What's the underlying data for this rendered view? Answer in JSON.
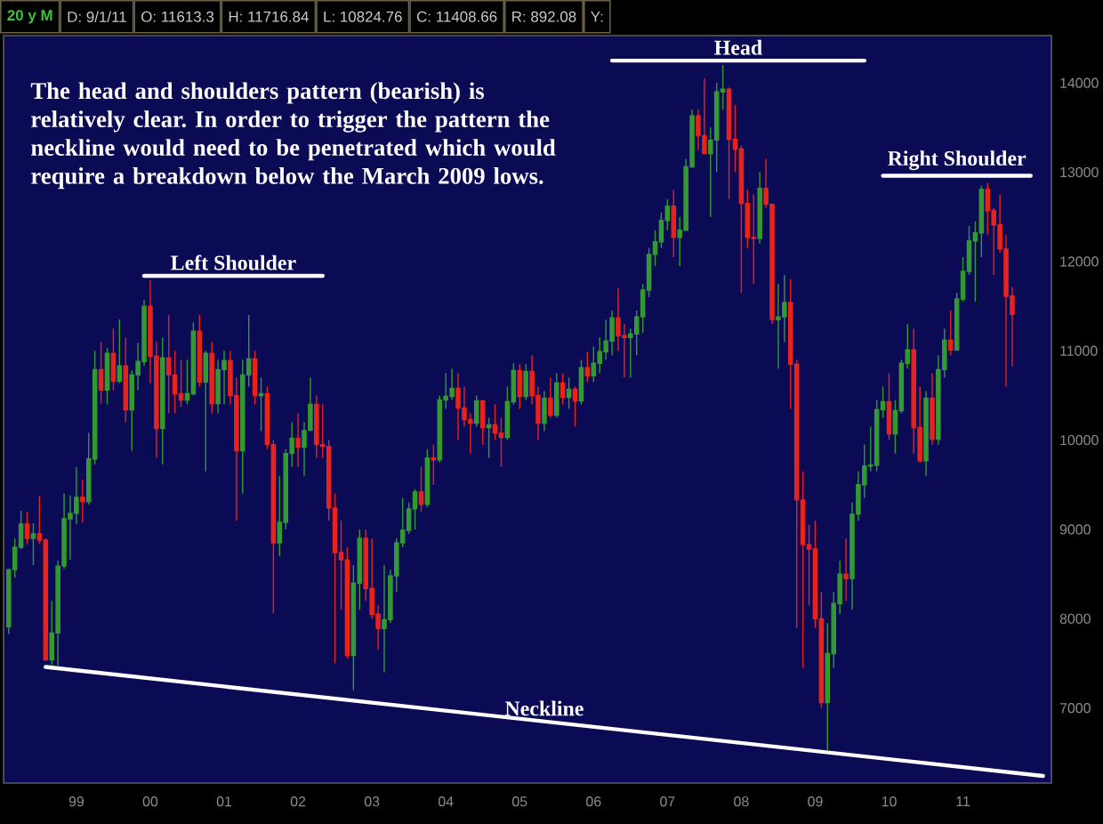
{
  "chart_data": {
    "type": "candlestick",
    "title": "20 y M",
    "annotations": [
      "The head and shoulders pattern (bearish) is relatively clear. In order to trigger the pattern the neckline would need to be penetrated which would require a breakdown below the March 2009 lows.",
      "D: 9/1/11",
      "O: 11613.3",
      "H: 11716.84",
      "L: 10824.76",
      "C: 11408.66",
      "R: 892.08",
      "Y:"
    ],
    "x": [
      "1998-02",
      "1998-03",
      "1998-04",
      "1998-05",
      "1998-06",
      "1998-07",
      "1998-08",
      "1998-09",
      "1998-10",
      "1998-11",
      "1998-12",
      "1999-01",
      "1999-02",
      "1999-03",
      "1999-04",
      "1999-05",
      "1999-06",
      "1999-07",
      "1999-08",
      "1999-09",
      "1999-10",
      "1999-11",
      "1999-12",
      "2000-01",
      "2000-02",
      "2000-03",
      "2000-04",
      "2000-05",
      "2000-06",
      "2000-07",
      "2000-08",
      "2000-09",
      "2000-10",
      "2000-11",
      "2000-12",
      "2001-01",
      "2001-02",
      "2001-03",
      "2001-04",
      "2001-05",
      "2001-06",
      "2001-07",
      "2001-08",
      "2001-09",
      "2001-10",
      "2001-11",
      "2001-12",
      "2002-01",
      "2002-02",
      "2002-03",
      "2002-04",
      "2002-05",
      "2002-06",
      "2002-07",
      "2002-08",
      "2002-09",
      "2002-10",
      "2002-11",
      "2002-12",
      "2003-01",
      "2003-02",
      "2003-03",
      "2003-04",
      "2003-05",
      "2003-06",
      "2003-07",
      "2003-08",
      "2003-09",
      "2003-10",
      "2003-11",
      "2003-12",
      "2004-01",
      "2004-02",
      "2004-03",
      "2004-04",
      "2004-05",
      "2004-06",
      "2004-07",
      "2004-08",
      "2004-09",
      "2004-10",
      "2004-11",
      "2004-12",
      "2005-01",
      "2005-02",
      "2005-03",
      "2005-04",
      "2005-05",
      "2005-06",
      "2005-07",
      "2005-08",
      "2005-09",
      "2005-10",
      "2005-11",
      "2005-12",
      "2006-01",
      "2006-02",
      "2006-03",
      "2006-04",
      "2006-05",
      "2006-06",
      "2006-07",
      "2006-08",
      "2006-09",
      "2006-10",
      "2006-11",
      "2006-12",
      "2007-01",
      "2007-02",
      "2007-03",
      "2007-04",
      "2007-05",
      "2007-06",
      "2007-07",
      "2007-08",
      "2007-09",
      "2007-10",
      "2007-11",
      "2007-12",
      "2008-01",
      "2008-02",
      "2008-03",
      "2008-04",
      "2008-05",
      "2008-06",
      "2008-07",
      "2008-08",
      "2008-09",
      "2008-10",
      "2008-11",
      "2008-12",
      "2009-01",
      "2009-02",
      "2009-03",
      "2009-04",
      "2009-05",
      "2009-06",
      "2009-07",
      "2009-08",
      "2009-09",
      "2009-10",
      "2009-11",
      "2009-12",
      "2010-01",
      "2010-02",
      "2010-03",
      "2010-04",
      "2010-05",
      "2010-06",
      "2010-07",
      "2010-08",
      "2010-09",
      "2010-10",
      "2010-11",
      "2010-12",
      "2011-01",
      "2011-02",
      "2011-03",
      "2011-04",
      "2011-05",
      "2011-06",
      "2011-07",
      "2011-08",
      "2011-09"
    ],
    "ohlc": [
      [
        7910,
        8560,
        7830,
        8550
      ],
      [
        8550,
        8900,
        8460,
        8800
      ],
      [
        8800,
        9210,
        8780,
        9060
      ],
      [
        9060,
        9200,
        8830,
        8900
      ],
      [
        8900,
        9070,
        8600,
        8950
      ],
      [
        8950,
        9370,
        8840,
        8880
      ],
      [
        8880,
        8900,
        7530,
        7540
      ],
      [
        7540,
        8200,
        7480,
        7840
      ],
      [
        7840,
        8650,
        7470,
        8590
      ],
      [
        8590,
        9400,
        8560,
        9120
      ],
      [
        9120,
        9380,
        8660,
        9180
      ],
      [
        9180,
        9700,
        9060,
        9360
      ],
      [
        9360,
        9560,
        9080,
        9310
      ],
      [
        9310,
        10080,
        9280,
        9790
      ],
      [
        9790,
        11000,
        9730,
        10790
      ],
      [
        10790,
        11100,
        10410,
        10560
      ],
      [
        10560,
        11030,
        10400,
        10970
      ],
      [
        10970,
        11250,
        10560,
        10660
      ],
      [
        10660,
        11350,
        10640,
        10830
      ],
      [
        10830,
        11150,
        10200,
        10340
      ],
      [
        10340,
        10780,
        9880,
        10730
      ],
      [
        10730,
        11090,
        10560,
        10880
      ],
      [
        10880,
        11570,
        10830,
        11500
      ],
      [
        11500,
        11790,
        10640,
        10940
      ],
      [
        10940,
        11100,
        9800,
        10130
      ],
      [
        10130,
        11150,
        9730,
        10920
      ],
      [
        10920,
        11400,
        10300,
        10730
      ],
      [
        10730,
        11000,
        10300,
        10520
      ],
      [
        10520,
        10900,
        10370,
        10450
      ],
      [
        10450,
        10900,
        10400,
        10520
      ],
      [
        10520,
        11320,
        10500,
        11220
      ],
      [
        11220,
        11400,
        10600,
        10650
      ],
      [
        10650,
        11000,
        9650,
        10970
      ],
      [
        10970,
        11100,
        10300,
        10410
      ],
      [
        10410,
        10900,
        10300,
        10790
      ],
      [
        10790,
        11000,
        10400,
        10890
      ],
      [
        10890,
        11000,
        10400,
        10500
      ],
      [
        10500,
        10700,
        9100,
        9880
      ],
      [
        9880,
        10900,
        9400,
        10730
      ],
      [
        10730,
        11400,
        10600,
        10910
      ],
      [
        10910,
        11000,
        10400,
        10500
      ],
      [
        10500,
        10700,
        10100,
        10520
      ],
      [
        10520,
        10600,
        9900,
        9950
      ],
      [
        9950,
        10000,
        8060,
        8850
      ],
      [
        8850,
        9600,
        8700,
        9080
      ],
      [
        9080,
        9900,
        9000,
        9850
      ],
      [
        9850,
        10200,
        9700,
        10020
      ],
      [
        10020,
        10300,
        9700,
        9920
      ],
      [
        9920,
        10200,
        9600,
        10110
      ],
      [
        10110,
        10700,
        10100,
        10400
      ],
      [
        10400,
        10500,
        9800,
        9950
      ],
      [
        9950,
        10400,
        9800,
        9930
      ],
      [
        9930,
        10000,
        9100,
        9240
      ],
      [
        9240,
        9400,
        7500,
        8740
      ],
      [
        8740,
        9100,
        8100,
        8660
      ],
      [
        8660,
        8800,
        7550,
        7590
      ],
      [
        7590,
        8600,
        7200,
        8400
      ],
      [
        8400,
        9000,
        8100,
        8900
      ],
      [
        8900,
        9000,
        8200,
        8340
      ],
      [
        8340,
        8900,
        8000,
        8050
      ],
      [
        8050,
        8150,
        7650,
        7890
      ],
      [
        7890,
        8600,
        7400,
        7990
      ],
      [
        7990,
        8550,
        7950,
        8480
      ],
      [
        8480,
        8900,
        8300,
        8850
      ],
      [
        8850,
        9350,
        8800,
        8990
      ],
      [
        8990,
        9300,
        8950,
        9230
      ],
      [
        9230,
        9450,
        9000,
        9420
      ],
      [
        9420,
        9700,
        9200,
        9280
      ],
      [
        9280,
        9900,
        9250,
        9800
      ],
      [
        9800,
        9950,
        9500,
        9780
      ],
      [
        9780,
        10500,
        9750,
        10450
      ],
      [
        10450,
        10750,
        10350,
        10490
      ],
      [
        10490,
        10800,
        10450,
        10580
      ],
      [
        10580,
        10750,
        10000,
        10360
      ],
      [
        10360,
        10600,
        10150,
        10230
      ],
      [
        10230,
        10300,
        9850,
        10190
      ],
      [
        10190,
        10500,
        10150,
        10440
      ],
      [
        10440,
        10450,
        9950,
        10140
      ],
      [
        10140,
        10250,
        9800,
        10170
      ],
      [
        10170,
        10400,
        10000,
        10080
      ],
      [
        10080,
        10250,
        9700,
        10030
      ],
      [
        10030,
        10600,
        10000,
        10430
      ],
      [
        10430,
        10860,
        10400,
        10780
      ],
      [
        10780,
        10850,
        10350,
        10490
      ],
      [
        10490,
        10850,
        10450,
        10770
      ],
      [
        10770,
        10950,
        10400,
        10500
      ],
      [
        10500,
        10600,
        10000,
        10190
      ],
      [
        10190,
        10550,
        10100,
        10470
      ],
      [
        10470,
        10700,
        10250,
        10280
      ],
      [
        10280,
        10750,
        10250,
        10640
      ],
      [
        10640,
        10750,
        10400,
        10480
      ],
      [
        10480,
        10700,
        10350,
        10570
      ],
      [
        10570,
        10600,
        10150,
        10440
      ],
      [
        10440,
        10900,
        10400,
        10810
      ],
      [
        10810,
        10990,
        10650,
        10720
      ],
      [
        10720,
        11050,
        10650,
        10860
      ],
      [
        10860,
        11150,
        10750,
        10990
      ],
      [
        10990,
        11350,
        10900,
        11110
      ],
      [
        11110,
        11450,
        10950,
        11370
      ],
      [
        11370,
        11700,
        11000,
        11170
      ],
      [
        11170,
        11300,
        10700,
        11150
      ],
      [
        11150,
        11250,
        10700,
        11190
      ],
      [
        11190,
        11450,
        10950,
        11380
      ],
      [
        11380,
        11750,
        11200,
        11680
      ],
      [
        11680,
        12150,
        11600,
        12080
      ],
      [
        12080,
        12350,
        11950,
        12220
      ],
      [
        12220,
        12550,
        12150,
        12460
      ],
      [
        12460,
        12700,
        12350,
        12620
      ],
      [
        12620,
        12800,
        12050,
        12270
      ],
      [
        12270,
        12500,
        11950,
        12350
      ],
      [
        12350,
        13150,
        12350,
        13060
      ],
      [
        13060,
        13700,
        13050,
        13630
      ],
      [
        13630,
        13700,
        13250,
        13410
      ],
      [
        13410,
        14050,
        13200,
        13210
      ],
      [
        13210,
        13500,
        12500,
        13360
      ],
      [
        13360,
        14000,
        13000,
        13900
      ],
      [
        13900,
        14200,
        13700,
        13930
      ],
      [
        13930,
        13950,
        12700,
        13370
      ],
      [
        13370,
        13750,
        13000,
        13260
      ],
      [
        13260,
        13300,
        11650,
        12650
      ],
      [
        12650,
        12800,
        12150,
        12270
      ],
      [
        12270,
        12750,
        11750,
        12260
      ],
      [
        12260,
        13000,
        12200,
        12820
      ],
      [
        12820,
        13150,
        12600,
        12640
      ],
      [
        12640,
        12650,
        11300,
        11350
      ],
      [
        11350,
        11750,
        10800,
        11380
      ],
      [
        11380,
        11850,
        11100,
        11540
      ],
      [
        11540,
        11800,
        10350,
        10850
      ],
      [
        10850,
        10900,
        7900,
        9330
      ],
      [
        9330,
        9650,
        7450,
        8830
      ],
      [
        8830,
        9050,
        8150,
        8780
      ],
      [
        8780,
        9100,
        7900,
        8000
      ],
      [
        8000,
        8300,
        7000,
        7060
      ],
      [
        7060,
        7950,
        6520,
        7610
      ],
      [
        7610,
        8300,
        7450,
        8170
      ],
      [
        8170,
        8650,
        8050,
        8500
      ],
      [
        8500,
        8900,
        8200,
        8450
      ],
      [
        8450,
        9300,
        8100,
        9170
      ],
      [
        9170,
        9650,
        9100,
        9500
      ],
      [
        9500,
        9950,
        9350,
        9710
      ],
      [
        9710,
        10150,
        9650,
        9720
      ],
      [
        9720,
        10450,
        9650,
        10340
      ],
      [
        10340,
        10600,
        10250,
        10430
      ],
      [
        10430,
        10750,
        10000,
        10070
      ],
      [
        10070,
        10450,
        9850,
        10330
      ],
      [
        10330,
        10900,
        10300,
        10860
      ],
      [
        10860,
        11300,
        10800,
        11010
      ],
      [
        11010,
        11250,
        9850,
        10140
      ],
      [
        10140,
        10600,
        9750,
        9770
      ],
      [
        9770,
        10550,
        9600,
        10470
      ],
      [
        10470,
        10750,
        9950,
        10010
      ],
      [
        10010,
        10950,
        9950,
        10790
      ],
      [
        10790,
        11250,
        10700,
        11120
      ],
      [
        11120,
        11450,
        10950,
        11010
      ],
      [
        11010,
        11650,
        11000,
        11580
      ],
      [
        11580,
        12050,
        11550,
        11890
      ],
      [
        11890,
        12400,
        11850,
        12230
      ],
      [
        12230,
        12450,
        11550,
        12320
      ],
      [
        12320,
        12850,
        12050,
        12810
      ],
      [
        12810,
        12880,
        12300,
        12570
      ],
      [
        12570,
        12600,
        11850,
        12410
      ],
      [
        12410,
        12750,
        12100,
        12140
      ],
      [
        12140,
        12300,
        10600,
        11610
      ],
      [
        11613.3,
        11716.84,
        10824.76,
        11408.66
      ]
    ],
    "colors": [
      "#339933",
      "#339933",
      "#339933",
      "#e8221c",
      "#339933",
      "#e8221c",
      "#e8221c",
      "#339933",
      "#339933",
      "#339933",
      "#339933",
      "#339933",
      "#e8221c",
      "#339933",
      "#339933",
      "#e8221c",
      "#339933",
      "#e8221c",
      "#339933",
      "#e8221c",
      "#339933",
      "#339933",
      "#339933",
      "#e8221c",
      "#e8221c",
      "#339933",
      "#e8221c",
      "#e8221c",
      "#e8221c",
      "#339933",
      "#339933",
      "#e8221c",
      "#339933",
      "#e8221c",
      "#339933",
      "#339933",
      "#e8221c",
      "#e8221c",
      "#339933",
      "#339933",
      "#e8221c",
      "#339933",
      "#e8221c",
      "#e8221c",
      "#339933",
      "#339933",
      "#339933",
      "#e8221c",
      "#339933",
      "#339933",
      "#e8221c",
      "#e8221c",
      "#e8221c",
      "#e8221c",
      "#e8221c",
      "#e8221c",
      "#339933",
      "#339933",
      "#e8221c",
      "#e8221c",
      "#e8221c",
      "#339933",
      "#339933",
      "#339933",
      "#339933",
      "#339933",
      "#339933",
      "#e8221c",
      "#339933",
      "#e8221c",
      "#339933",
      "#339933",
      "#339933",
      "#e8221c",
      "#e8221c",
      "#e8221c",
      "#339933",
      "#e8221c",
      "#339933",
      "#e8221c",
      "#e8221c",
      "#339933",
      "#339933",
      "#e8221c",
      "#339933",
      "#e8221c",
      "#e8221c",
      "#339933",
      "#e8221c",
      "#339933",
      "#e8221c",
      "#339933",
      "#e8221c",
      "#339933",
      "#e8221c",
      "#339933",
      "#339933",
      "#339933",
      "#339933",
      "#e8221c",
      "#e8221c",
      "#339933",
      "#339933",
      "#339933",
      "#339933",
      "#339933",
      "#339933",
      "#339933",
      "#e8221c",
      "#339933",
      "#339933",
      "#339933",
      "#e8221c",
      "#e8221c",
      "#339933",
      "#339933",
      "#339933",
      "#e8221c",
      "#e8221c",
      "#e8221c",
      "#e8221c",
      "#e8221c",
      "#339933",
      "#e8221c",
      "#e8221c",
      "#339933",
      "#339933",
      "#e8221c",
      "#e8221c",
      "#e8221c",
      "#e8221c",
      "#e8221c",
      "#e8221c",
      "#339933",
      "#339933",
      "#339933",
      "#e8221c",
      "#339933",
      "#339933",
      "#339933",
      "#339933",
      "#339933",
      "#339933",
      "#e8221c",
      "#339933",
      "#339933",
      "#339933",
      "#e8221c",
      "#e8221c",
      "#339933",
      "#e8221c",
      "#339933",
      "#339933",
      "#e8221c",
      "#339933",
      "#339933",
      "#339933",
      "#339933",
      "#339933",
      "#e8221c",
      "#e8221c",
      "#e8221c",
      "#e8221c",
      "#e8221c"
    ],
    "series": [
      {
        "type": "line",
        "name": "Left Shoulder",
        "color": "#ffffff",
        "x": [
          "1999-12",
          "2002-05"
        ],
        "values": [
          11840,
          11840
        ]
      },
      {
        "type": "line",
        "name": "Head",
        "color": "#ffffff",
        "x": [
          "2006-04",
          "2009-09"
        ],
        "values": [
          14250,
          14250
        ]
      },
      {
        "type": "line",
        "name": "Right Shoulder",
        "color": "#ffffff",
        "x": [
          "2009-12",
          "2011-12"
        ],
        "values": [
          12960,
          12960
        ]
      },
      {
        "type": "line",
        "name": "Neckline",
        "color": "#ffffff",
        "x": [
          "1998-08",
          "2012-02"
        ],
        "values": [
          7460,
          6240
        ]
      }
    ],
    "xlim": [
      "1998-01-06",
      "2012-03-12"
    ],
    "ylim": [
      6160,
      14530
    ],
    "xticks": [
      {
        "value": "1999-01",
        "label": "99"
      },
      {
        "value": "2000-01",
        "label": "00"
      },
      {
        "value": "2001-01",
        "label": "01"
      },
      {
        "value": "2002-01",
        "label": "02"
      },
      {
        "value": "2003-01",
        "label": "03"
      },
      {
        "value": "2004-01",
        "label": "04"
      },
      {
        "value": "2005-01",
        "label": "05"
      },
      {
        "value": "2006-01",
        "label": "06"
      },
      {
        "value": "2007-01",
        "label": "07"
      },
      {
        "value": "2008-01",
        "label": "08"
      },
      {
        "value": "2009-01",
        "label": "09"
      },
      {
        "value": "2010-01",
        "label": "10"
      },
      {
        "value": "2011-01",
        "label": "11"
      }
    ],
    "yticks": [
      7000,
      8000,
      9000,
      10000,
      11000,
      12000,
      13000,
      14000
    ]
  }
}
